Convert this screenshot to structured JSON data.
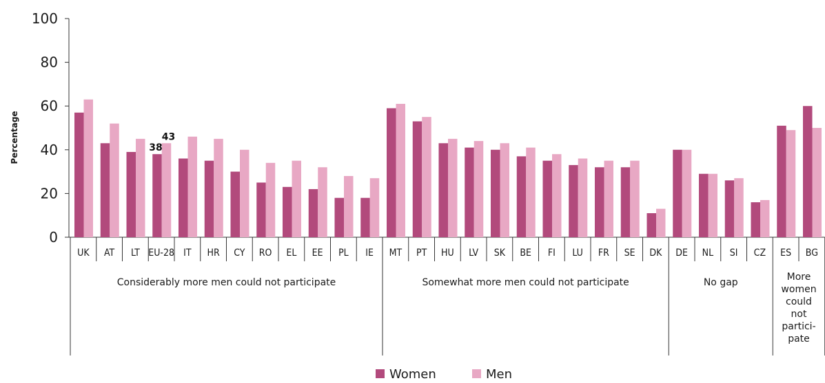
{
  "chart_data": {
    "type": "bar",
    "ylabel": "Percentage",
    "ylim": [
      0,
      100
    ],
    "yticks": [
      "0",
      "20",
      "40",
      "60",
      "80",
      "100"
    ],
    "categories": [
      "UK",
      "AT",
      "LT",
      "EU-28",
      "IT",
      "HR",
      "CY",
      "RO",
      "EL",
      "EE",
      "PL",
      "IE",
      "MT",
      "PT",
      "HU",
      "LV",
      "SK",
      "BE",
      "FI",
      "LU",
      "FR",
      "SE",
      "DK",
      "DE",
      "NL",
      "SI",
      "CZ",
      "ES",
      "BG"
    ],
    "series": [
      {
        "name": "Women",
        "color": "#b24a7c",
        "values": [
          57,
          43,
          39,
          38,
          36,
          35,
          30,
          25,
          23,
          22,
          18,
          18,
          59,
          53,
          43,
          41,
          40,
          37,
          35,
          33,
          32,
          32,
          11,
          40,
          29,
          26,
          16,
          51,
          60
        ]
      },
      {
        "name": "Men",
        "color": "#e8a8c4",
        "values": [
          63,
          52,
          45,
          43,
          46,
          45,
          40,
          34,
          35,
          32,
          28,
          27,
          61,
          55,
          45,
          44,
          43,
          41,
          38,
          36,
          35,
          35,
          13,
          40,
          29,
          27,
          17,
          49,
          50
        ]
      }
    ],
    "groups": [
      {
        "label_lines": [
          "Considerably more men could not participate"
        ],
        "start": 0,
        "end": 11
      },
      {
        "label_lines": [
          "Somewhat more men could not participate"
        ],
        "start": 12,
        "end": 22
      },
      {
        "label_lines": [
          "No gap"
        ],
        "start": 23,
        "end": 26
      },
      {
        "label_lines": [
          "More",
          "women",
          "could",
          "not",
          "partici-",
          "pate"
        ],
        "start": 27,
        "end": 28
      }
    ],
    "annotations": [
      {
        "category": "EU-28",
        "series": "Women",
        "text": "38"
      },
      {
        "category": "EU-28",
        "series": "Men",
        "text": "43"
      }
    ],
    "legend": {
      "position": "bottom-center",
      "items": [
        "Women",
        "Men"
      ]
    }
  }
}
